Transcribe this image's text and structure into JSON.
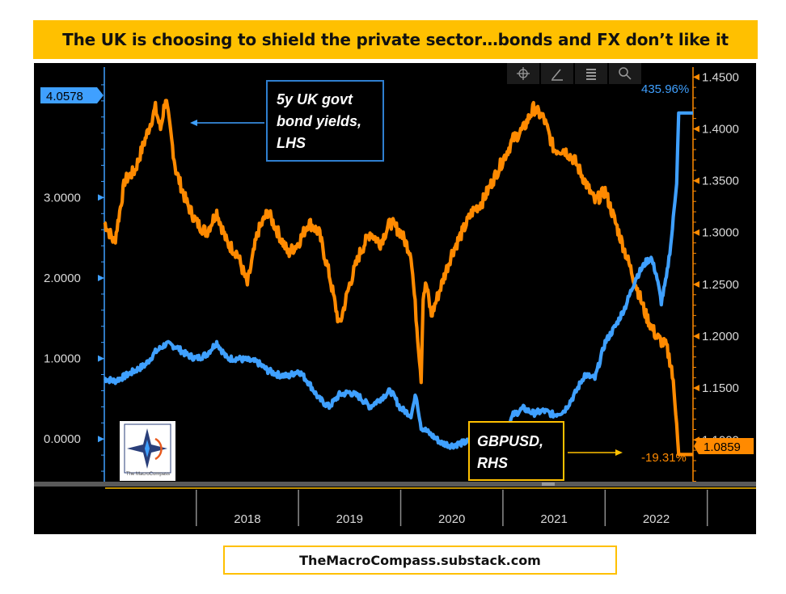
{
  "banner": {
    "title": "The UK is choosing to shield the private sector…bonds and FX don’t like it"
  },
  "footer": {
    "url": "TheMacroCompass.substack.com"
  },
  "logo": {
    "text": "The MacroCompass"
  },
  "colors": {
    "yield": "#3FA0FF",
    "gbp": "#FF8A00",
    "panel": "#000000",
    "banner": "#FFC000"
  },
  "toolbar": {
    "icons": [
      "crosshair-icon",
      "pencil-icon",
      "table-icon",
      "zoom-icon"
    ]
  },
  "chart_data": {
    "type": "line",
    "title": "The UK is choosing to shield the private sector…bonds and FX don’t like it",
    "x_range": [
      2017.1,
      2022.86
    ],
    "x_ticks": [
      2018,
      2019,
      2020,
      2021,
      2022
    ],
    "left_axis": {
      "label": "5y UK govt bond yields, LHS",
      "range": [
        -0.53,
        4.62
      ],
      "ticks": [
        "0.0000",
        "1.0000",
        "2.0000",
        "3.0000"
      ],
      "tick_values": [
        0,
        1,
        2,
        3
      ]
    },
    "right_axis": {
      "label": "GBPUSD, RHS",
      "range": [
        1.0597,
        1.4596
      ],
      "ticks": [
        "1.1000",
        "1.1500",
        "1.2000",
        "1.2500",
        "1.3000",
        "1.3500",
        "1.4000",
        "1.4500"
      ],
      "tick_values": [
        1.1,
        1.15,
        1.2,
        1.25,
        1.3,
        1.35,
        1.4,
        1.45
      ]
    },
    "series": [
      {
        "name": "5y UK govt bond yields",
        "axis": "left",
        "x": [
          2017.1,
          2017.2,
          2017.3,
          2017.4,
          2017.5,
          2017.6,
          2017.7,
          2017.8,
          2017.9,
          2018.0,
          2018.1,
          2018.2,
          2018.3,
          2018.4,
          2018.5,
          2018.6,
          2018.7,
          2018.8,
          2018.9,
          2019.0,
          2019.1,
          2019.2,
          2019.3,
          2019.4,
          2019.5,
          2019.6,
          2019.7,
          2019.8,
          2019.9,
          2020.0,
          2020.1,
          2020.15,
          2020.2,
          2020.3,
          2020.4,
          2020.5,
          2020.6,
          2020.7,
          2020.8,
          2020.9,
          2021.0,
          2021.1,
          2021.2,
          2021.3,
          2021.4,
          2021.5,
          2021.6,
          2021.7,
          2021.8,
          2021.9,
          2022.0,
          2022.1,
          2022.2,
          2022.3,
          2022.4,
          2022.45,
          2022.5,
          2022.55,
          2022.6,
          2022.65,
          2022.7,
          2022.72,
          2022.86
        ],
        "values": [
          0.75,
          0.72,
          0.78,
          0.85,
          0.92,
          1.08,
          1.18,
          1.15,
          1.05,
          1.0,
          1.05,
          1.2,
          1.0,
          1.0,
          0.98,
          0.95,
          0.85,
          0.8,
          0.78,
          0.85,
          0.7,
          0.5,
          0.4,
          0.55,
          0.58,
          0.52,
          0.4,
          0.5,
          0.6,
          0.38,
          0.3,
          0.55,
          0.15,
          0.05,
          -0.05,
          -0.08,
          -0.05,
          -0.02,
          -0.05,
          -0.05,
          0.0,
          0.3,
          0.38,
          0.32,
          0.35,
          0.3,
          0.35,
          0.55,
          0.8,
          0.75,
          1.2,
          1.4,
          1.65,
          2.0,
          2.2,
          2.25,
          2.05,
          1.7,
          2.0,
          2.5,
          3.2,
          4.05,
          4.05
        ]
      },
      {
        "name": "GBPUSD",
        "axis": "right",
        "x": [
          2017.1,
          2017.2,
          2017.3,
          2017.4,
          2017.5,
          2017.6,
          2017.65,
          2017.7,
          2017.8,
          2017.9,
          2018.0,
          2018.1,
          2018.2,
          2018.3,
          2018.4,
          2018.5,
          2018.6,
          2018.7,
          2018.8,
          2018.9,
          2019.0,
          2019.1,
          2019.2,
          2019.3,
          2019.4,
          2019.5,
          2019.6,
          2019.7,
          2019.8,
          2019.9,
          2020.0,
          2020.1,
          2020.2,
          2020.22,
          2020.25,
          2020.3,
          2020.4,
          2020.5,
          2020.6,
          2020.7,
          2020.8,
          2020.9,
          2021.0,
          2021.1,
          2021.2,
          2021.3,
          2021.4,
          2021.5,
          2021.6,
          2021.7,
          2021.8,
          2021.9,
          2022.0,
          2022.1,
          2022.2,
          2022.3,
          2022.4,
          2022.5,
          2022.6,
          2022.65,
          2022.7,
          2022.72,
          2022.86
        ],
        "values": [
          1.31,
          1.29,
          1.35,
          1.36,
          1.39,
          1.42,
          1.4,
          1.43,
          1.36,
          1.33,
          1.31,
          1.3,
          1.32,
          1.29,
          1.28,
          1.25,
          1.3,
          1.32,
          1.3,
          1.28,
          1.29,
          1.31,
          1.3,
          1.26,
          1.21,
          1.25,
          1.28,
          1.3,
          1.29,
          1.31,
          1.3,
          1.28,
          1.16,
          1.24,
          1.25,
          1.22,
          1.25,
          1.28,
          1.3,
          1.32,
          1.33,
          1.35,
          1.37,
          1.39,
          1.4,
          1.42,
          1.41,
          1.38,
          1.38,
          1.37,
          1.35,
          1.33,
          1.34,
          1.31,
          1.28,
          1.25,
          1.22,
          1.2,
          1.19,
          1.17,
          1.12,
          1.0859,
          1.0859
        ]
      }
    ],
    "last_values": {
      "yield": "4.0578",
      "gbp": "1.0859"
    },
    "change_labels": {
      "yield": "435.96%",
      "gbp": "-19.31%"
    },
    "annotations": [
      {
        "text": [
          "5y UK govt",
          "bond yields,",
          "LHS"
        ],
        "series": "5y UK govt bond yields"
      },
      {
        "text": [
          "GBPUSD,",
          "RHS"
        ],
        "series": "GBPUSD"
      }
    ],
    "legend": "inline annotations"
  }
}
